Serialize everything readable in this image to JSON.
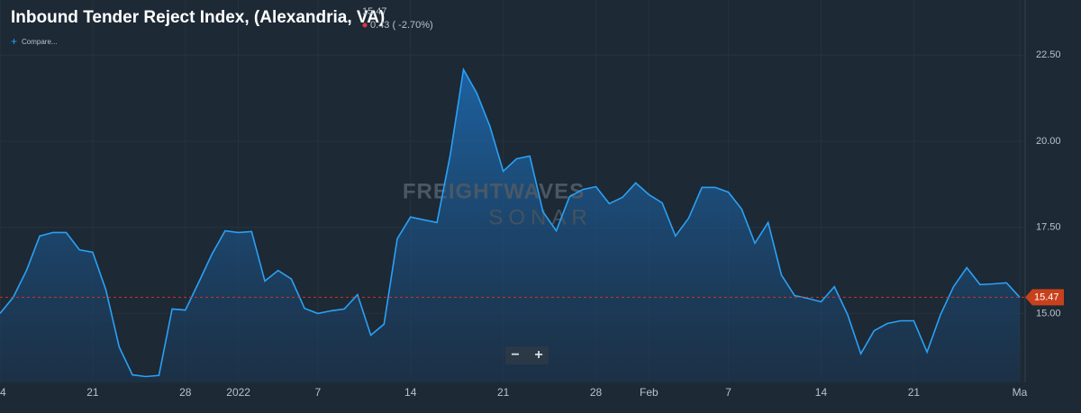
{
  "header": {
    "price": "15.47",
    "change": "0.43 ( -2.70%)",
    "compare": "Compare..."
  },
  "watermark": {
    "brand": "FREIGHTWAVES",
    "product": "SONAR"
  },
  "chart_data": {
    "type": "area",
    "title": "Inbound Tender Reject Index, (Alexandria, VA)",
    "categories": [
      "4",
      null,
      null,
      null,
      null,
      null,
      null,
      "21",
      null,
      null,
      null,
      null,
      null,
      null,
      "28",
      null,
      null,
      null,
      "2022",
      null,
      null,
      null,
      null,
      null,
      "7",
      null,
      null,
      null,
      null,
      null,
      null,
      "14",
      null,
      null,
      null,
      null,
      null,
      null,
      "21",
      null,
      null,
      null,
      null,
      null,
      null,
      "28",
      null,
      null,
      null,
      "Feb",
      null,
      null,
      null,
      null,
      null,
      "7",
      null,
      null,
      null,
      null,
      null,
      null,
      "14",
      null,
      null,
      null,
      null,
      null,
      null,
      "21",
      null,
      null,
      null,
      null,
      null,
      null,
      null,
      "Ma"
    ],
    "series": [
      {
        "name": "Inbound Tender Reject Index, (Alexandria, VA)",
        "color": "#2aa1f5",
        "values": [
          15.0,
          15.47,
          16.25,
          17.25,
          17.35,
          17.35,
          16.85,
          16.78,
          15.68,
          14.03,
          13.22,
          13.17,
          13.2,
          15.13,
          15.1,
          15.9,
          16.72,
          17.4,
          17.35,
          17.38,
          15.94,
          16.25,
          16.0,
          15.15,
          15.0,
          15.08,
          15.13,
          15.55,
          14.37,
          14.69,
          17.17,
          17.8,
          17.72,
          17.64,
          19.6,
          22.08,
          21.4,
          20.43,
          19.13,
          19.49,
          19.57,
          17.95,
          17.4,
          18.39,
          18.6,
          18.68,
          18.19,
          18.37,
          18.79,
          18.45,
          18.21,
          17.25,
          17.77,
          18.66,
          18.66,
          18.52,
          18.03,
          17.04,
          17.64,
          16.12,
          15.52,
          15.44,
          15.34,
          15.78,
          14.97,
          13.83,
          14.5,
          14.71,
          14.79,
          14.79,
          13.88,
          14.95,
          15.78,
          16.33,
          15.84,
          15.86,
          15.89,
          15.47
        ]
      }
    ],
    "ylim": [
      13,
      24.1
    ],
    "yticks": [
      {
        "value": 15,
        "label": "15.00"
      },
      {
        "value": 17.5,
        "label": "17.50"
      },
      {
        "value": 20,
        "label": "20.00"
      },
      {
        "value": 22.5,
        "label": "22.50"
      }
    ],
    "grid": true
  }
}
